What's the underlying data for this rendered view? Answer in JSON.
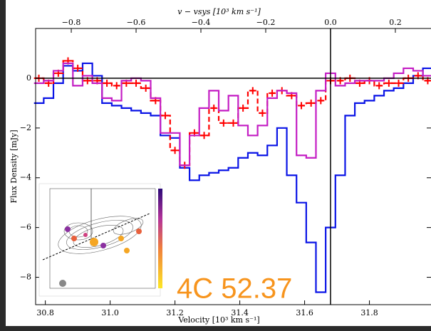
{
  "chart_data": {
    "type": "step",
    "annotation": "4C 52.37",
    "annotation_color": "#f7941d",
    "xlabel": "Velocity [10³ km s⁻¹]",
    "ylabel": "Flux Density [mJy]",
    "top_xlabel": "v − vsys [10³ km s⁻¹]",
    "xlim": [
      30.77,
      31.99
    ],
    "xticks": [
      30.8,
      {
        "value": 31,
        "label": "31.0"
      },
      31.2,
      31.4,
      31.6,
      31.8
    ],
    "top_xlim": [
      -0.91,
      0.31
    ],
    "top_xticks": [
      {
        "value": -0.8,
        "label": "−0.8"
      },
      {
        "value": -0.6,
        "label": "−0.6"
      },
      {
        "value": -0.4,
        "label": "−0.4"
      },
      {
        "value": -0.2,
        "label": "−0.2"
      },
      {
        "value": 0,
        "label": "0.0"
      },
      0.2
    ],
    "ylim": [
      -9.1,
      2.0
    ],
    "yticks": [
      {
        "value": -8,
        "label": "−8"
      },
      {
        "value": -6,
        "label": "−6"
      },
      {
        "value": -4,
        "label": "−4"
      },
      {
        "value": -2,
        "label": "−2"
      },
      0
    ],
    "reference_lines": {
      "y": 0,
      "top_x": 0
    },
    "x": [
      30.78,
      30.81,
      30.84,
      30.87,
      30.9,
      30.93,
      30.96,
      30.99,
      31.02,
      31.05,
      31.08,
      31.11,
      31.14,
      31.17,
      31.2,
      31.23,
      31.26,
      31.29,
      31.32,
      31.35,
      31.38,
      31.41,
      31.44,
      31.47,
      31.5,
      31.53,
      31.56,
      31.59,
      31.62,
      31.65,
      31.68,
      31.71,
      31.74,
      31.77,
      31.8,
      31.83,
      31.86,
      31.89,
      31.92,
      31.95,
      31.98
    ],
    "series": [
      {
        "color": "#0a14e6",
        "style": "solid",
        "values": [
          -1.0,
          -0.8,
          -0.2,
          0.5,
          0.3,
          0.6,
          0.1,
          -1.0,
          -1.1,
          -1.2,
          -1.3,
          -1.4,
          -1.5,
          -2.3,
          -2.4,
          -3.6,
          -4.1,
          -3.9,
          -3.8,
          -3.7,
          -3.6,
          -3.2,
          -3.0,
          -3.1,
          -2.7,
          -2.0,
          -3.9,
          -5.0,
          -6.6,
          -8.6,
          -6.0,
          -3.9,
          -1.5,
          -1.0,
          -0.9,
          -0.7,
          -0.5,
          -0.4,
          -0.2,
          0.1,
          0.4
        ]
      },
      {
        "color": "#ff0000",
        "style": "dashed",
        "values": [
          0.0,
          -0.2,
          0.2,
          0.7,
          0.4,
          -0.1,
          -0.1,
          -0.2,
          -0.3,
          -0.2,
          -0.2,
          -0.4,
          -0.9,
          -1.5,
          -2.9,
          -3.5,
          -2.2,
          -2.3,
          -1.2,
          -1.8,
          -1.8,
          -1.2,
          -0.5,
          -1.4,
          -0.6,
          -0.5,
          -0.7,
          -1.1,
          -1.0,
          -0.9,
          -0.1,
          -0.1,
          0.0,
          -0.2,
          -0.1,
          -0.3,
          -0.2,
          -0.2,
          0.0,
          0.1,
          -0.1
        ]
      },
      {
        "color": "#c41ec4",
        "style": "solid",
        "values": [
          -0.2,
          -0.1,
          0.3,
          0.6,
          -0.3,
          0.1,
          -0.2,
          -0.8,
          -0.9,
          -0.1,
          0.0,
          -0.1,
          -0.8,
          -2.2,
          -2.2,
          -3.5,
          -2.3,
          -1.2,
          -0.5,
          -1.3,
          -0.7,
          -1.9,
          -2.3,
          -1.9,
          -0.8,
          -0.5,
          -0.6,
          -3.1,
          -3.2,
          -0.5,
          0.2,
          -0.3,
          -0.2,
          -0.1,
          -0.1,
          -0.1,
          0.0,
          0.2,
          0.4,
          0.3,
          0.1
        ]
      }
    ]
  }
}
